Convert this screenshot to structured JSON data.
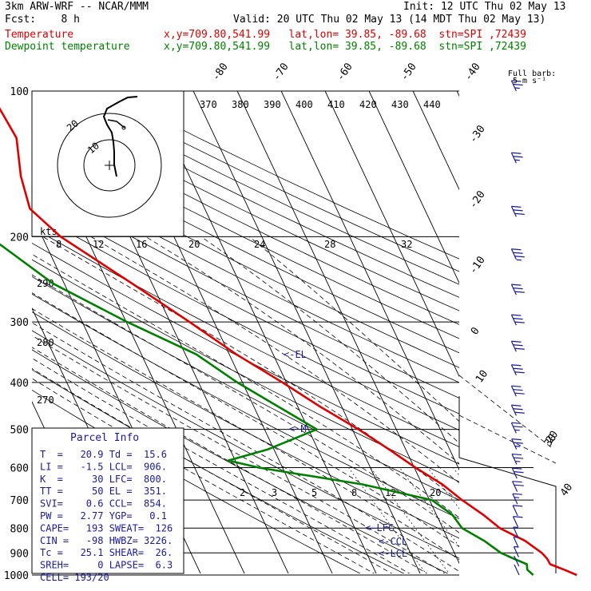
{
  "header": {
    "line1_left": "3km ARW-WRF -- NCAR/MMM",
    "line1_right": "Init: 12 UTC Thu 02 May 13",
    "line2_left": "Fcst:    8 h",
    "line2_right": "Valid: 20 UTC Thu 02 May 13 (14 MDT Thu 02 May 13)",
    "temp_label": "Temperature",
    "temp_info": "x,y=709.80,541.99   lat,lon= 39.85, -89.68  stn=SPI ,72439",
    "dew_label": "Dewpoint temperature",
    "dew_info": "x,y=709.80,541.99   lat,lon= 39.85, -89.68  stn=SPI ,72439"
  },
  "barb_legend": {
    "line1": "Full barb:",
    "line2": "5 m s⁻¹"
  },
  "hodograph": {
    "units": "kts",
    "ring_labels": [
      "10",
      "20"
    ]
  },
  "parcel_info": {
    "title": "Parcel Info",
    "rows": [
      "T  =   20.9 Td =  15.6",
      "LI =   -1.5 LCL=  906.",
      "K  =     30 LFC=  800.",
      "TT =     50 EL =  351.",
      "SVI=    0.6 CCL=  854.",
      "PW =   2.77 YGP=   0.1",
      "CAPE=   193 SWEAT=  126",
      "CIN =   -98 HWBZ= 3226.",
      "Tc =   25.1 SHEAR=  26.",
      "SREH=     0 LAPSE=  6.3",
      "CELL= 193/20"
    ]
  },
  "level_labels": {
    "el": "EL",
    "m": "M",
    "lfc": "LFC",
    "ccl": "CCL",
    "lcl": "LCL"
  },
  "chart_data": {
    "type": "skew-t",
    "y_axis": "pressure (hPa), log scale",
    "pressure_levels": [
      100,
      200,
      300,
      400,
      500,
      600,
      700,
      800,
      900,
      1000
    ],
    "isotherm_labels": [
      "-80",
      "-70",
      "-60",
      "-50",
      "-40",
      "-30",
      "-20",
      "-10",
      "0",
      "10",
      "20",
      "30",
      "40"
    ],
    "theta_e_labels": [
      "370",
      "380",
      "390",
      "400",
      "410",
      "420",
      "430",
      "440"
    ],
    "mixing_ratio_labels_upper": [
      "8",
      "12",
      "16",
      "20",
      "24",
      "28",
      "32"
    ],
    "mixing_ratio_labels_lower": [
      "2",
      "3",
      "5",
      "8",
      "12",
      "20"
    ],
    "dry_adiabat_labels": [
      "290",
      "280",
      "270"
    ],
    "series": [
      {
        "name": "Temperature",
        "color": "#e00000",
        "points": [
          [
            1000,
            25.5
          ],
          [
            975,
            23.2
          ],
          [
            950,
            20.6
          ],
          [
            925,
            20.5
          ],
          [
            900,
            19.9
          ],
          [
            850,
            17.4
          ],
          [
            800,
            13.0
          ],
          [
            750,
            10.6
          ],
          [
            700,
            7.4
          ],
          [
            650,
            4.6
          ],
          [
            600,
            0.3
          ],
          [
            550,
            -3.8
          ],
          [
            500,
            -8.6
          ],
          [
            450,
            -14.8
          ],
          [
            400,
            -20.9
          ],
          [
            350,
            -28.4
          ],
          [
            300,
            -35.6
          ],
          [
            250,
            -44.5
          ],
          [
            200,
            -55.8
          ],
          [
            175,
            -59.8
          ],
          [
            150,
            -58.4
          ],
          [
            125,
            -55.3
          ],
          [
            100,
            -56.4
          ]
        ]
      },
      {
        "name": "Dewpoint temperature",
        "color": "#008000",
        "points": [
          [
            1000,
            15.6
          ],
          [
            975,
            14.8
          ],
          [
            950,
            15.3
          ],
          [
            925,
            12.9
          ],
          [
            900,
            10.6
          ],
          [
            850,
            8.1
          ],
          [
            800,
            4.4
          ],
          [
            750,
            3.6
          ],
          [
            700,
            0.5
          ],
          [
            650,
            -13.5
          ],
          [
            600,
            -35.3
          ],
          [
            580,
            -41.6
          ],
          [
            550,
            -31.4
          ],
          [
            500,
            -18.1
          ],
          [
            450,
            -24.3
          ],
          [
            400,
            -31.2
          ],
          [
            350,
            -37.5
          ],
          [
            300,
            -49.8
          ],
          [
            250,
            -62.5
          ],
          [
            200,
            -72.0
          ],
          [
            175,
            -73.6
          ],
          [
            150,
            -72.6
          ],
          [
            125,
            -73.1
          ],
          [
            100,
            -79.1
          ]
        ]
      }
    ],
    "wind_barbs_speed_ms": [
      2,
      2,
      3,
      4,
      3,
      5,
      6,
      8,
      10,
      12,
      13,
      13,
      14,
      15,
      15,
      16,
      17,
      17,
      17,
      18,
      16,
      14,
      13
    ],
    "ylim": [
      1000,
      100
    ],
    "grid": true
  }
}
